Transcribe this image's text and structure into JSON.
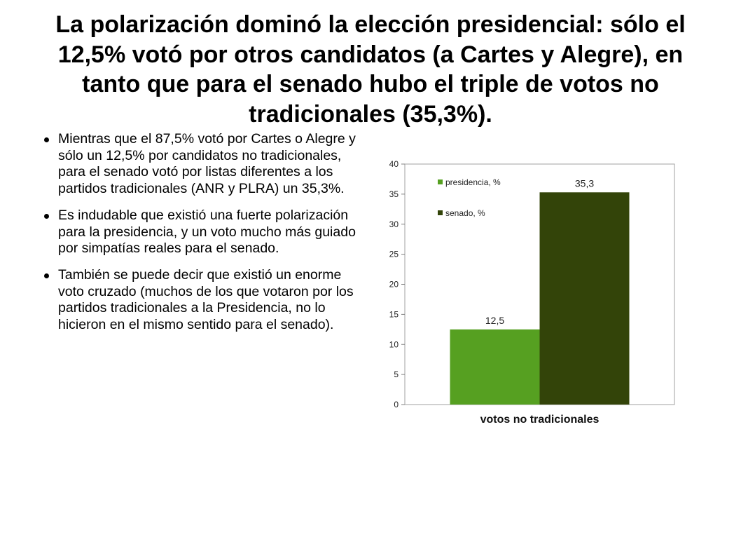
{
  "slide": {
    "title": "La polarización dominó la elección presidencial: sólo el 12,5% votó por otros candidatos (a Cartes y Alegre), en tanto que para el senado hubo el triple de votos no tradicionales (35,3%).",
    "bullets": [
      "Mientras que el 87,5% votó por Cartes o Alegre y sólo un 12,5% por candidatos no tradicionales, para el senado votó por listas diferentes a los partidos tradicionales (ANR y PLRA) un 35,3%.",
      "Es indudable que existió una fuerte polarización para la presidencia, y un voto mucho más guiado por simpatías reales para el senado.",
      "También se puede decir que existió un enorme voto cruzado (muchos de los que votaron por los partidos tradicionales a la Presidencia, no lo hicieron en el mismo sentido para el senado)."
    ]
  },
  "chart_data": {
    "type": "bar",
    "categories": [
      "votos no tradicionales"
    ],
    "series": [
      {
        "name": "presidencia, %",
        "values": [
          12.5
        ],
        "label": "12,5",
        "color": "#56a021"
      },
      {
        "name": "senado, %",
        "values": [
          35.3
        ],
        "label": "35,3",
        "color": "#334409"
      }
    ],
    "title": "",
    "xlabel": "",
    "ylabel": "",
    "ylim": [
      0,
      40
    ],
    "yticks": [
      "0",
      "5",
      "10",
      "15",
      "20",
      "25",
      "30",
      "35",
      "40"
    ],
    "grid": false,
    "legend": "top-left inside plot"
  }
}
